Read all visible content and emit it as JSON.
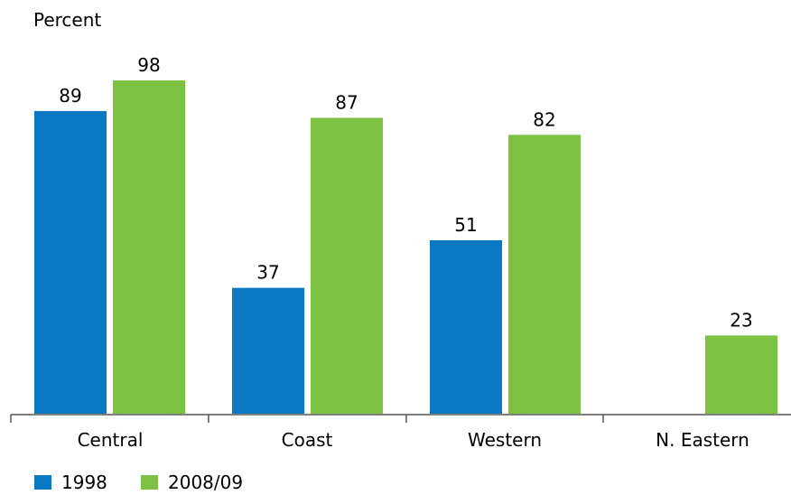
{
  "chart_data": {
    "type": "bar",
    "title": "",
    "xlabel": "",
    "ylabel": "Percent",
    "ylim": [
      0,
      100
    ],
    "grid": false,
    "legend_position": "bottom-left",
    "categories": [
      "Central",
      "Coast",
      "Western",
      "N. Eastern"
    ],
    "series": [
      {
        "name": "1998",
        "color": "#0a78c2",
        "values": [
          89,
          37,
          51,
          null
        ]
      },
      {
        "name": "2008/09",
        "color": "#7dc242",
        "values": [
          98,
          87,
          82,
          23
        ]
      }
    ]
  }
}
